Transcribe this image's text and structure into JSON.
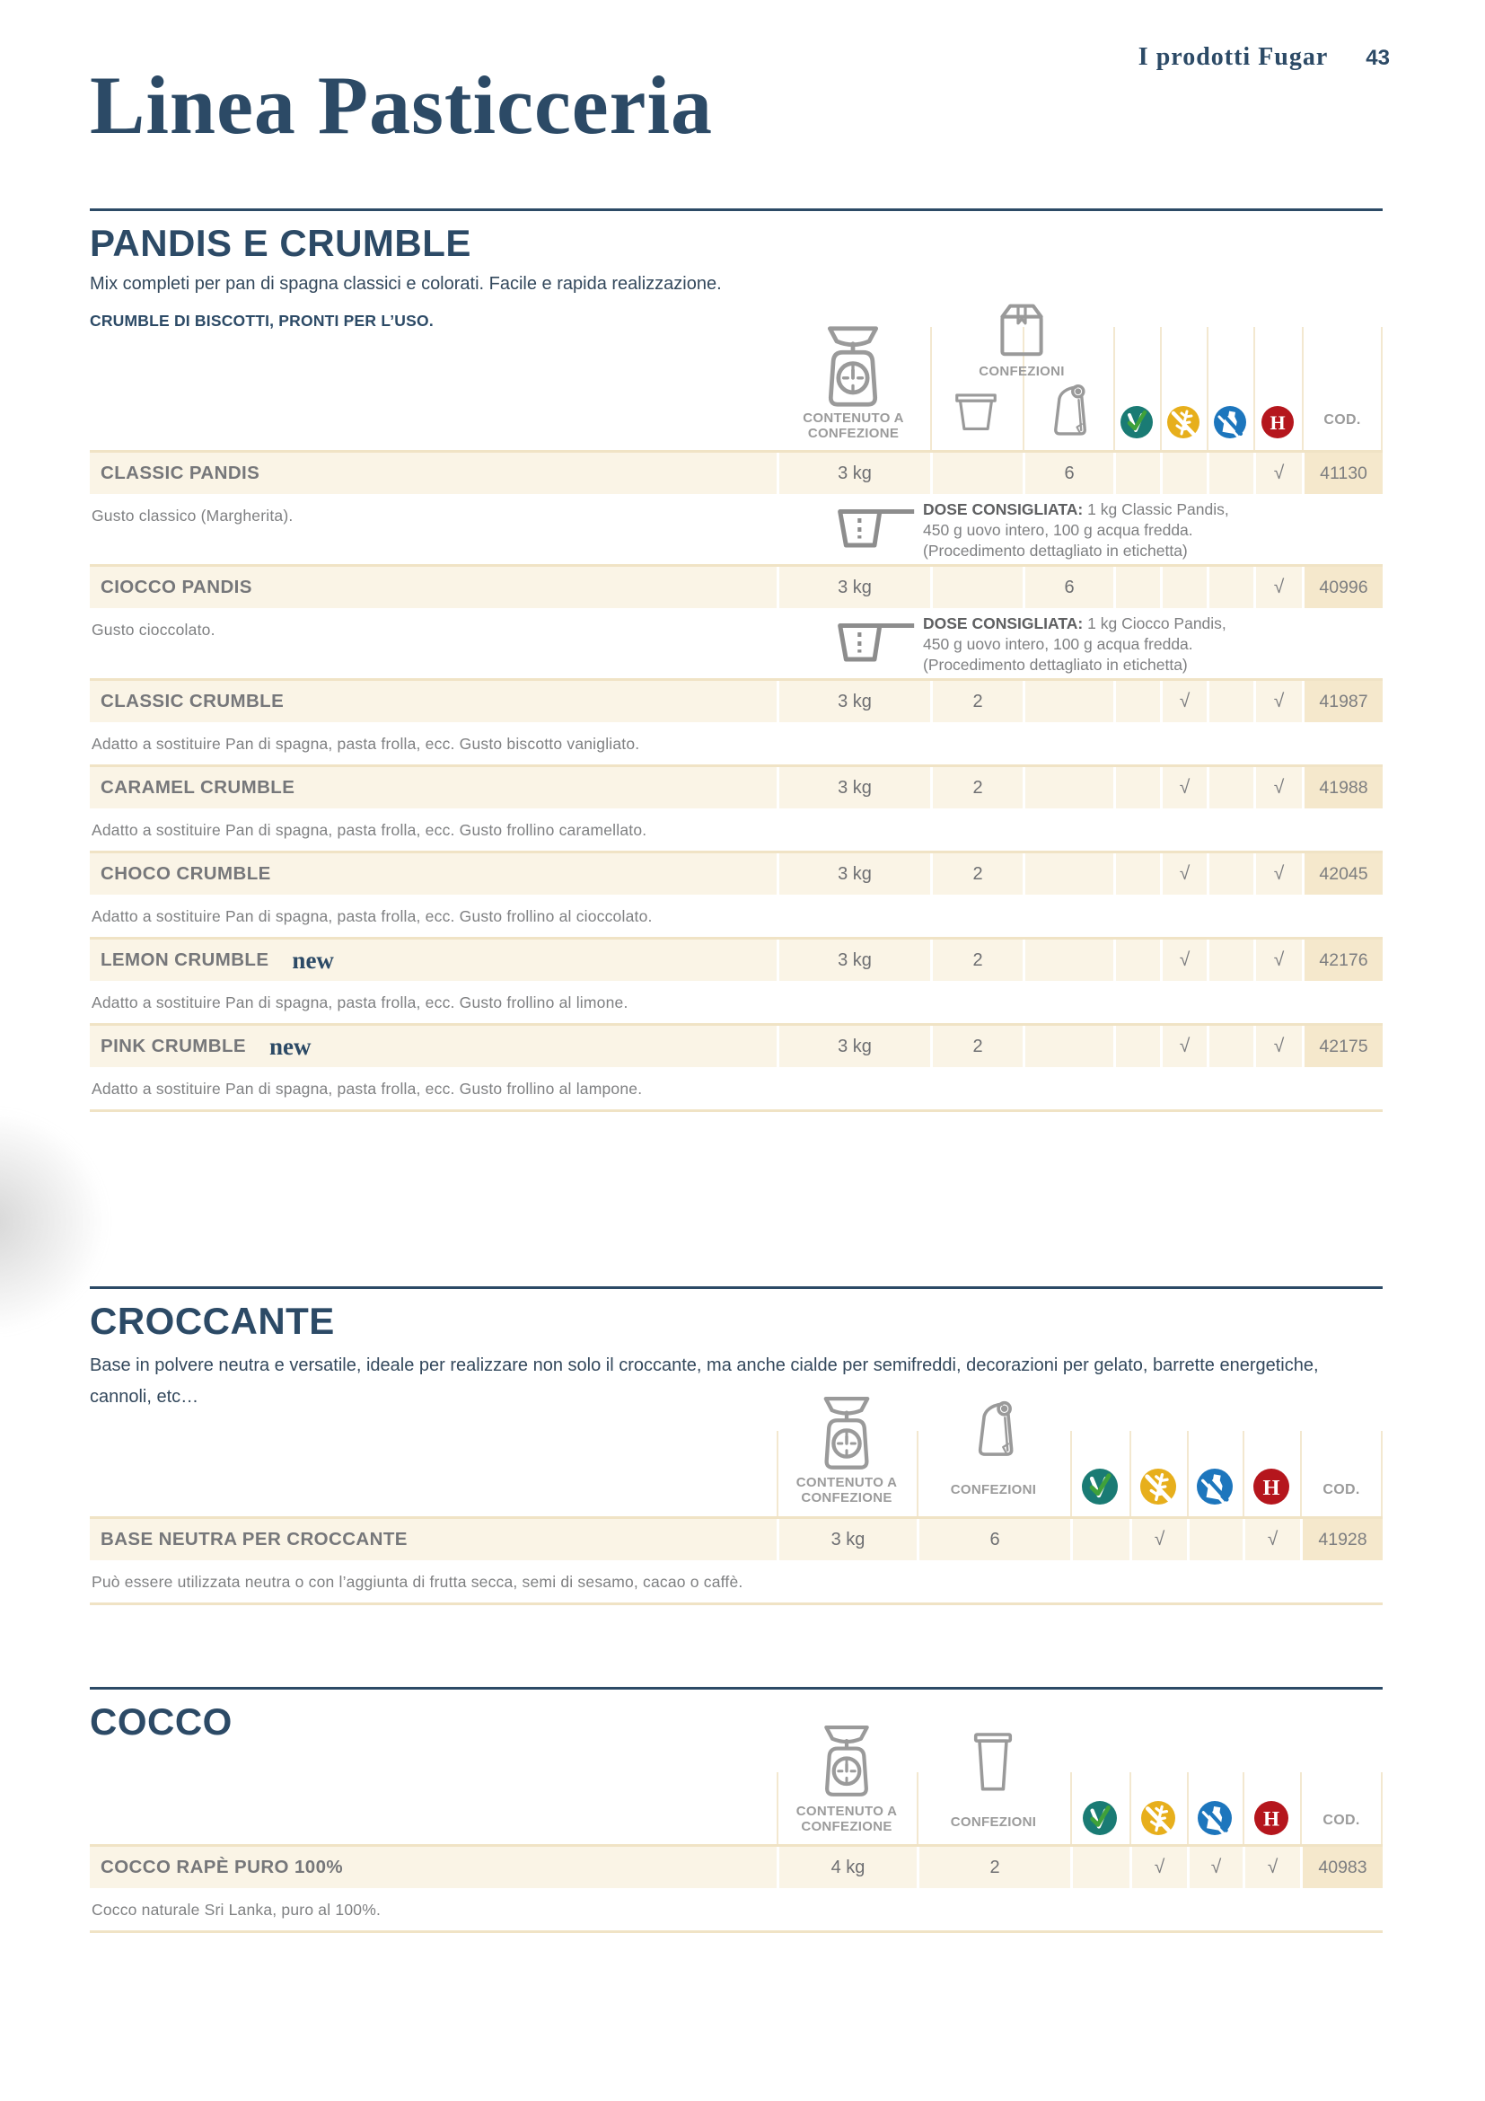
{
  "page": {
    "header_title": "I prodotti Fugar",
    "page_number": "43",
    "title": "Linea Pasticceria"
  },
  "labels": {
    "contenuto_line1": "CONTENUTO A",
    "contenuto_line2": "CONFEZIONE",
    "confezioni": "CONFEZIONI",
    "cod": "COD.",
    "check": "√",
    "new_label": "new"
  },
  "icons": {
    "scale": "scale-icon",
    "box": "carton-box-icon",
    "tub": "tub-icon",
    "bag": "paper-bag-icon",
    "tall_tub": "tall-tub-icon",
    "cup": "measuring-cup-icon",
    "badges": [
      {
        "name": "vegetable-ok-icon",
        "color": "#1a7b74"
      },
      {
        "name": "gluten-free-icon",
        "color": "#e7af1c"
      },
      {
        "name": "lactose-free-icon",
        "color": "#1d76bd"
      },
      {
        "name": "halal-icon",
        "color": "#b5161d",
        "letter": "H"
      }
    ],
    "grey": "#9a9a9a"
  },
  "colors": {
    "navy": "#2c4a66",
    "row_cream": "#faf4e6",
    "cod_cell": "#f5e8cc",
    "hairline": "#f0e3c5"
  },
  "sections": [
    {
      "title": "PANDIS E CRUMBLE",
      "desc": "Mix completi per pan di spagna classici e colorati. Facile e rapida realizzazione.",
      "subdesc": "CRUMBLE DI BISCOTTI, PRONTI PER L’USO.",
      "rows": [
        {
          "name": "CLASSIC PANDIS",
          "contenuto": "3 kg",
          "bucket": "",
          "bag": "6",
          "checks": [
            false,
            false,
            false,
            true
          ],
          "cod": "41130",
          "desc": "Gusto classico (Margherita).",
          "dose": {
            "label": "DOSE CONSIGLIATA:",
            "lines": [
              "1 kg Classic Pandis,",
              "450 g uovo intero, 100 g acqua fredda.",
              "(Procedimento dettagliato in etichetta)"
            ]
          }
        },
        {
          "name": "CIOCCO PANDIS",
          "contenuto": "3 kg",
          "bucket": "",
          "bag": "6",
          "checks": [
            false,
            false,
            false,
            true
          ],
          "cod": "40996",
          "desc": "Gusto cioccolato.",
          "dose": {
            "label": "DOSE CONSIGLIATA:",
            "lines": [
              "1 kg Ciocco Pandis,",
              "450 g uovo intero, 100 g acqua fredda.",
              "(Procedimento dettagliato in etichetta)"
            ]
          }
        },
        {
          "name": "CLASSIC CRUMBLE",
          "contenuto": "3 kg",
          "bucket": "2",
          "bag": "",
          "checks": [
            false,
            true,
            false,
            true
          ],
          "cod": "41987",
          "desc": "Adatto a sostituire Pan di spagna, pasta frolla, ecc. Gusto biscotto vanigliato."
        },
        {
          "name": "CARAMEL CRUMBLE",
          "contenuto": "3 kg",
          "bucket": "2",
          "bag": "",
          "checks": [
            false,
            true,
            false,
            true
          ],
          "cod": "41988",
          "desc": "Adatto a sostituire Pan di spagna, pasta frolla, ecc. Gusto frollino caramellato."
        },
        {
          "name": "CHOCO CRUMBLE",
          "contenuto": "3 kg",
          "bucket": "2",
          "bag": "",
          "checks": [
            false,
            true,
            false,
            true
          ],
          "cod": "42045",
          "desc": "Adatto a sostituire Pan di spagna, pasta frolla, ecc. Gusto frollino al cioccolato."
        },
        {
          "name": "LEMON CRUMBLE",
          "is_new": true,
          "contenuto": "3 kg",
          "bucket": "2",
          "bag": "",
          "checks": [
            false,
            true,
            false,
            true
          ],
          "cod": "42176",
          "desc": "Adatto a sostituire Pan di spagna, pasta frolla, ecc. Gusto frollino al limone."
        },
        {
          "name": "PINK CRUMBLE",
          "is_new": true,
          "contenuto": "3 kg",
          "bucket": "2",
          "bag": "",
          "checks": [
            false,
            true,
            false,
            true
          ],
          "cod": "42175",
          "desc": "Adatto a sostituire Pan di spagna, pasta frolla, ecc. Gusto frollino al lampone."
        }
      ]
    },
    {
      "title": "CROCCANTE",
      "desc": "Base in polvere neutra e versatile, ideale per realizzare non solo il croccante, ma anche cialde per semifreddi, decorazioni per gelato, barrette energetiche, cannoli, etc…",
      "rows": [
        {
          "name": "BASE NEUTRA PER CROCCANTE",
          "contenuto": "3 kg",
          "confezioni": "6",
          "checks": [
            false,
            true,
            false,
            true
          ],
          "cod": "41928",
          "desc": "Può essere utilizzata neutra o con l’aggiunta di frutta secca, semi di sesamo, cacao o caffè."
        }
      ]
    },
    {
      "title": "COCCO",
      "desc": "",
      "rows": [
        {
          "name": "COCCO RAPÈ PURO 100%",
          "contenuto": "4 kg",
          "confezioni": "2",
          "checks": [
            false,
            true,
            true,
            true
          ],
          "cod": "40983",
          "desc": "Cocco naturale Sri Lanka, puro al 100%."
        }
      ]
    }
  ]
}
